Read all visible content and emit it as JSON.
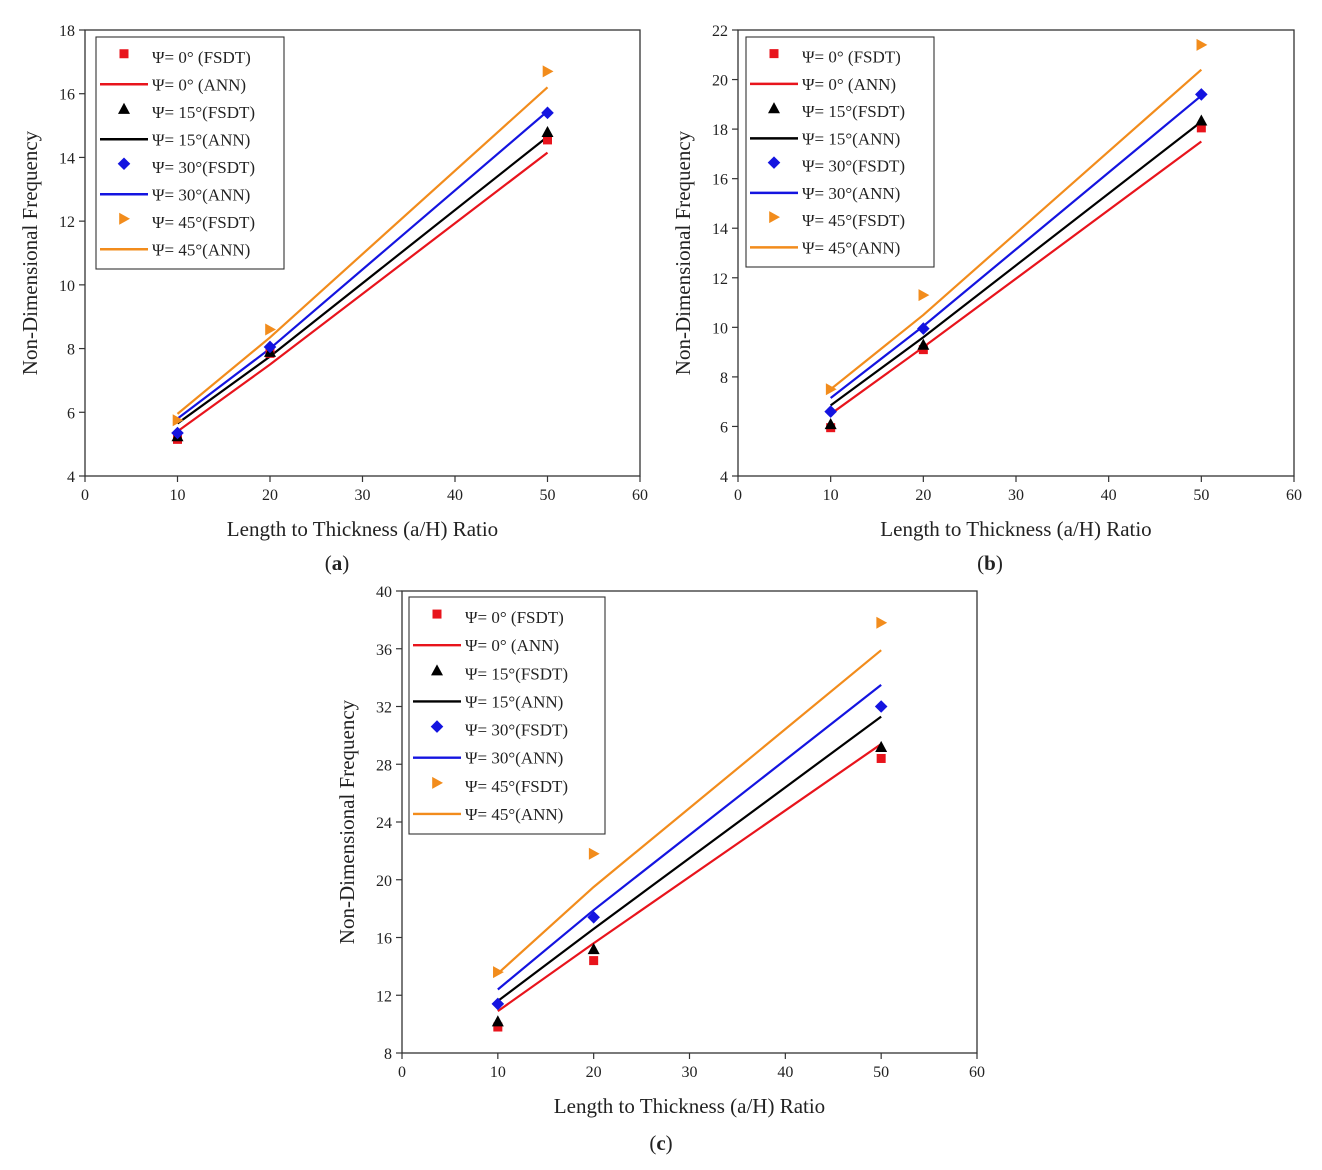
{
  "figure": {
    "panels": [
      {
        "caption_letter": "a",
        "xlabel": "Length to Thickness (a/H) Ratio",
        "ylabel": "Non-Dimensional Frequency",
        "xlim": [
          0,
          60
        ],
        "ylim": [
          4,
          18
        ],
        "xticks": [
          0,
          10,
          20,
          30,
          40,
          50,
          60
        ],
        "yticks": [
          4,
          6,
          8,
          10,
          12,
          14,
          16,
          18
        ]
      },
      {
        "caption_letter": "b",
        "xlabel": "Length to Thickness (a/H) Ratio",
        "ylabel": "Non-Dimensional Frequency",
        "xlim": [
          0,
          60
        ],
        "ylim": [
          4,
          22
        ],
        "xticks": [
          0,
          10,
          20,
          30,
          40,
          50,
          60
        ],
        "yticks": [
          4,
          6,
          8,
          10,
          12,
          14,
          16,
          18,
          20,
          22
        ]
      },
      {
        "caption_letter": "c",
        "xlabel": "Length to Thickness (a/H) Ratio",
        "ylabel": "Non-Dimensional Frequency",
        "xlim": [
          0,
          60
        ],
        "ylim": [
          8,
          40
        ],
        "xticks": [
          0,
          10,
          20,
          30,
          40,
          50,
          60
        ],
        "yticks": [
          8,
          12,
          16,
          20,
          24,
          28,
          32,
          36,
          40
        ]
      }
    ]
  },
  "chart_data": [
    {
      "type": "scatter",
      "title": "(a)",
      "xlabel": "Length to Thickness (a/H) Ratio",
      "ylabel": "Non-Dimensional Frequency",
      "xlim": [
        0,
        60
      ],
      "ylim": [
        4,
        18
      ],
      "legend_position": "top-left",
      "x": [
        10,
        20,
        50
      ],
      "series": [
        {
          "name": "Ψ= 0°  (FSDT)",
          "kind": "marker",
          "marker": "square",
          "color": "#e8141c",
          "values": [
            5.15,
            7.85,
            14.55
          ]
        },
        {
          "name": "Ψ= 0°  (ANN)",
          "kind": "line",
          "color": "#e8141c",
          "values": [
            5.4,
            7.5,
            14.15
          ]
        },
        {
          "name": "Ψ= 15°(FSDT)",
          "kind": "marker",
          "marker": "triangle-up",
          "color": "#000000",
          "values": [
            5.25,
            7.9,
            14.8
          ]
        },
        {
          "name": "Ψ= 15°(ANN)",
          "kind": "line",
          "color": "#000000",
          "values": [
            5.65,
            7.75,
            14.65
          ]
        },
        {
          "name": "Ψ= 30°(FSDT)",
          "kind": "marker",
          "marker": "diamond",
          "color": "#1414e0",
          "values": [
            5.35,
            8.05,
            15.4
          ]
        },
        {
          "name": "Ψ= 30°(ANN)",
          "kind": "line",
          "color": "#1414e0",
          "values": [
            5.8,
            8.0,
            15.45
          ]
        },
        {
          "name": "Ψ= 45°(FSDT)",
          "kind": "marker",
          "marker": "triangle-right",
          "color": "#f28c1c",
          "values": [
            5.75,
            8.6,
            16.7
          ]
        },
        {
          "name": "Ψ= 45°(ANN)",
          "kind": "line",
          "color": "#f28c1c",
          "values": [
            5.95,
            8.35,
            16.2
          ]
        }
      ]
    },
    {
      "type": "scatter",
      "title": "(b)",
      "xlabel": "Length to Thickness (a/H) Ratio",
      "ylabel": "Non-Dimensional Frequency",
      "xlim": [
        0,
        60
      ],
      "ylim": [
        4,
        22
      ],
      "legend_position": "top-left",
      "x": [
        10,
        20,
        50
      ],
      "series": [
        {
          "name": "Ψ= 0°  (FSDT)",
          "kind": "marker",
          "marker": "square",
          "color": "#e8141c",
          "values": [
            5.95,
            9.1,
            18.05
          ]
        },
        {
          "name": "Ψ= 0°  (ANN)",
          "kind": "line",
          "color": "#e8141c",
          "values": [
            6.5,
            9.2,
            17.5
          ]
        },
        {
          "name": "Ψ= 15°(FSDT)",
          "kind": "marker",
          "marker": "triangle-up",
          "color": "#000000",
          "values": [
            6.1,
            9.3,
            18.35
          ]
        },
        {
          "name": "Ψ= 15°(ANN)",
          "kind": "line",
          "color": "#000000",
          "values": [
            6.85,
            9.6,
            18.3
          ]
        },
        {
          "name": "Ψ= 30°(FSDT)",
          "kind": "marker",
          "marker": "diamond",
          "color": "#1414e0",
          "values": [
            6.6,
            9.95,
            19.4
          ]
        },
        {
          "name": "Ψ= 30°(ANN)",
          "kind": "line",
          "color": "#1414e0",
          "values": [
            7.15,
            10.05,
            19.35
          ]
        },
        {
          "name": "Ψ= 45°(FSDT)",
          "kind": "marker",
          "marker": "triangle-right",
          "color": "#f28c1c",
          "values": [
            7.5,
            11.3,
            21.4
          ]
        },
        {
          "name": "Ψ= 45°(ANN)",
          "kind": "line",
          "color": "#f28c1c",
          "values": [
            7.5,
            10.5,
            20.4
          ]
        }
      ]
    },
    {
      "type": "scatter",
      "title": "(c)",
      "xlabel": "Length to Thickness (a/H) Ratio",
      "ylabel": "Non-Dimensional Frequency",
      "xlim": [
        0,
        60
      ],
      "ylim": [
        8,
        40
      ],
      "legend_position": "top-left",
      "x": [
        10,
        20,
        50
      ],
      "series": [
        {
          "name": "Ψ= 0°  (FSDT)",
          "kind": "marker",
          "marker": "square",
          "color": "#e8141c",
          "values": [
            9.8,
            14.4,
            28.4
          ]
        },
        {
          "name": "Ψ= 0°  (ANN)",
          "kind": "line",
          "color": "#e8141c",
          "values": [
            10.9,
            15.6,
            29.4
          ]
        },
        {
          "name": "Ψ= 15°(FSDT)",
          "kind": "marker",
          "marker": "triangle-up",
          "color": "#000000",
          "values": [
            10.2,
            15.2,
            29.2
          ]
        },
        {
          "name": "Ψ= 15°(ANN)",
          "kind": "line",
          "color": "#000000",
          "values": [
            11.6,
            16.6,
            31.3
          ]
        },
        {
          "name": "Ψ= 30°(FSDT)",
          "kind": "marker",
          "marker": "diamond",
          "color": "#1414e0",
          "values": [
            11.4,
            17.4,
            32.0
          ]
        },
        {
          "name": "Ψ= 30°(ANN)",
          "kind": "line",
          "color": "#1414e0",
          "values": [
            12.4,
            17.9,
            33.5
          ]
        },
        {
          "name": "Ψ= 45°(FSDT)",
          "kind": "marker",
          "marker": "triangle-right",
          "color": "#f28c1c",
          "values": [
            13.6,
            21.8,
            37.8
          ]
        },
        {
          "name": "Ψ= 45°(ANN)",
          "kind": "line",
          "color": "#f28c1c",
          "values": [
            13.5,
            19.5,
            35.9
          ]
        }
      ]
    }
  ]
}
